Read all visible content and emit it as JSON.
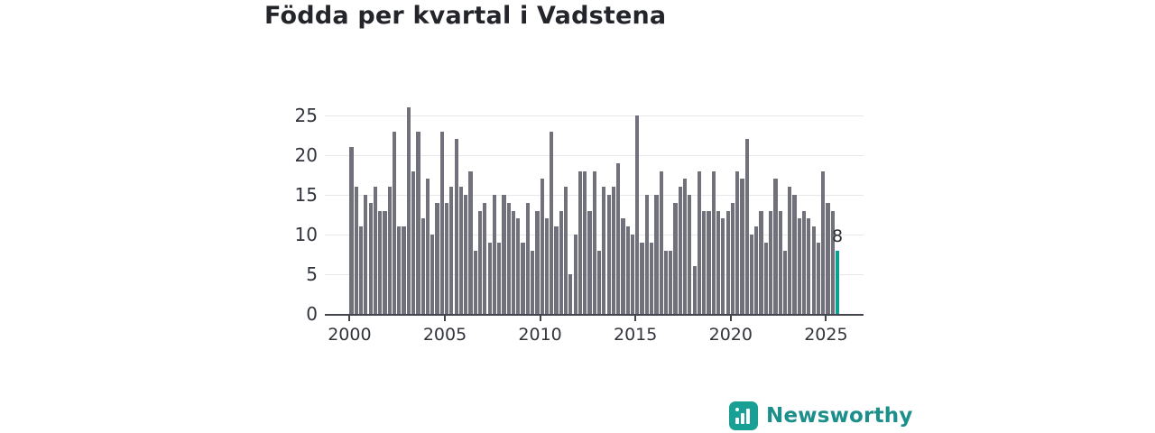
{
  "page": {
    "title": "Födda per kvartal i Vadstena",
    "background_color": "#ffffff"
  },
  "branding": {
    "logo_text": "Newsworthy",
    "logo_color": "#1d8f8b",
    "logo_mark_color": "#19a094",
    "logo_mark_icon": "bar-chart-icon"
  },
  "chart_data": {
    "type": "bar",
    "title": "Födda per kvartal i Vadstena",
    "xlabel": "",
    "ylabel": "",
    "x_start_period": "2000-Q1",
    "x_frequency": "quarterly",
    "x_tick_labels": [
      "2000",
      "2005",
      "2010",
      "2015",
      "2020",
      "2025"
    ],
    "y_ticks": [
      0,
      5,
      10,
      15,
      20,
      25
    ],
    "ylim": [
      0,
      26
    ],
    "grid": "horizontal",
    "legend": "none",
    "bar_color": "#71717b",
    "highlight_color": "#0ba093",
    "highlight_last_bar": true,
    "last_bar_label": "8",
    "values": [
      21,
      16,
      11,
      15,
      14,
      16,
      13,
      13,
      16,
      23,
      11,
      11,
      26,
      18,
      23,
      12,
      17,
      10,
      14,
      23,
      14,
      16,
      22,
      16,
      15,
      18,
      8,
      13,
      14,
      9,
      15,
      9,
      15,
      14,
      13,
      12,
      9,
      14,
      8,
      13,
      17,
      12,
      23,
      11,
      13,
      16,
      5,
      10,
      18,
      18,
      13,
      18,
      8,
      16,
      15,
      16,
      19,
      12,
      11,
      10,
      25,
      9,
      15,
      9,
      15,
      18,
      8,
      8,
      14,
      16,
      17,
      15,
      6,
      18,
      13,
      13,
      18,
      13,
      12,
      13,
      14,
      18,
      17,
      22,
      10,
      11,
      13,
      9,
      13,
      17,
      13,
      8,
      16,
      15,
      12,
      13,
      12,
      11,
      9,
      18,
      14,
      13,
      8
    ]
  }
}
